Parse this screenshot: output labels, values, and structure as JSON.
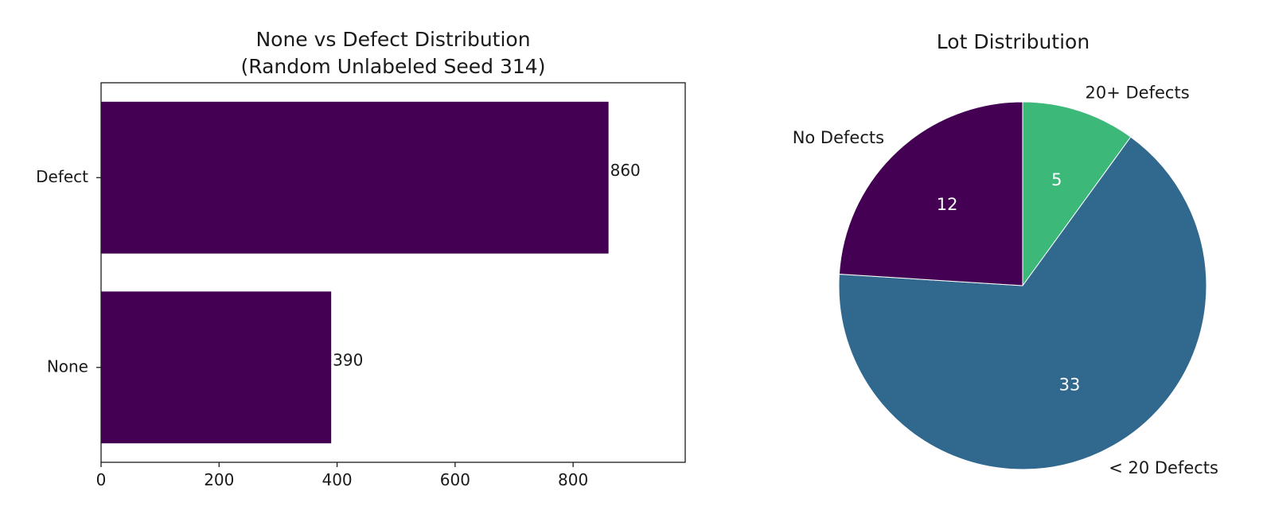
{
  "chart_data": [
    {
      "type": "bar",
      "orientation": "horizontal",
      "title": "None vs Defect Distribution",
      "subtitle": "(Random Unlabeled Seed 314)",
      "categories": [
        "Defect",
        "None"
      ],
      "values": [
        860,
        390
      ],
      "data_labels": [
        "860",
        "390"
      ],
      "xlim": [
        0,
        990
      ],
      "xticks": [
        0,
        200,
        400,
        600,
        800
      ],
      "xtick_labels": [
        "0",
        "200",
        "400",
        "600",
        "800"
      ],
      "xlabel": "",
      "ylabel": "",
      "grid": false,
      "color": "#440154"
    },
    {
      "type": "pie",
      "title": "Lot Distribution",
      "labels": [
        "20+ Defects",
        "< 20 Defects",
        "No Defects"
      ],
      "values": [
        5,
        33,
        12
      ],
      "value_labels": [
        "5",
        "33",
        "12"
      ],
      "colors": [
        "#3cb878",
        "#31688e",
        "#440154"
      ],
      "start": "top, clockwise"
    }
  ]
}
